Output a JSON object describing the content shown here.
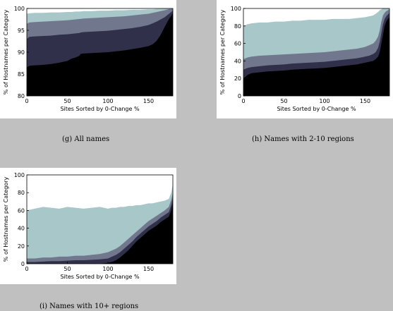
{
  "charts": [
    {
      "caption": "(g) All names"
    },
    {
      "caption": "(h) Names with 2-10 regions"
    },
    {
      "caption": "(i) Names with 10+ regions"
    }
  ],
  "colors": {
    "band1": "#000000",
    "band2": "#30304a",
    "band3": "#71788e",
    "band4": "#a7c7c8"
  },
  "chart_data": [
    {
      "type": "area",
      "title": "",
      "xlabel": "Sites Sorted by 0-Change %",
      "ylabel": "% of Hostnames per Category",
      "xlim": [
        0,
        180
      ],
      "ylim": [
        80,
        100
      ],
      "xticks": [
        0,
        50,
        100,
        150
      ],
      "yticks": [
        80,
        85,
        90,
        95,
        100
      ],
      "grid": false,
      "stacked": true,
      "x": [
        0,
        3,
        10,
        20,
        30,
        40,
        50,
        55,
        60,
        65,
        66,
        70,
        80,
        90,
        100,
        110,
        120,
        130,
        140,
        150,
        155,
        160,
        165,
        170,
        172,
        174,
        176,
        178,
        180
      ],
      "series": [
        {
          "values": [
            86.5,
            86.9,
            87.0,
            87.1,
            87.3,
            87.6,
            88.0,
            88.5,
            88.8,
            89.2,
            89.6,
            89.7,
            89.8,
            89.9,
            90.0,
            90.2,
            90.4,
            90.7,
            91.0,
            91.4,
            91.8,
            92.6,
            94.0,
            95.8,
            96.5,
            97.2,
            97.8,
            98.3,
            99.0
          ]
        },
        {
          "values": [
            93.0,
            93.5,
            93.6,
            93.7,
            93.8,
            94.0,
            94.1,
            94.2,
            94.3,
            94.4,
            94.5,
            94.6,
            94.7,
            94.8,
            94.9,
            95.1,
            95.3,
            95.5,
            95.8,
            96.2,
            96.6,
            97.0,
            97.5,
            98.0,
            98.3,
            98.6,
            98.9,
            99.2,
            99.5
          ]
        },
        {
          "values": [
            96.5,
            96.8,
            96.9,
            97.0,
            97.1,
            97.2,
            97.3,
            97.4,
            97.5,
            97.6,
            97.6,
            97.7,
            97.8,
            97.9,
            98.0,
            98.1,
            98.2,
            98.4,
            98.6,
            98.8,
            99.0,
            99.2,
            99.4,
            99.6,
            99.7,
            99.8,
            99.9,
            99.9,
            100
          ]
        },
        {
          "values": [
            98.8,
            98.9,
            99.0,
            99.0,
            99.1,
            99.1,
            99.2,
            99.2,
            99.3,
            99.3,
            99.3,
            99.4,
            99.4,
            99.5,
            99.5,
            99.6,
            99.6,
            99.7,
            99.7,
            99.8,
            99.8,
            99.9,
            99.9,
            100,
            100,
            100,
            100,
            100,
            100
          ]
        }
      ]
    },
    {
      "type": "area",
      "title": "",
      "xlabel": "Sites Sorted by 0-Change %",
      "ylabel": "% of Hostnames per Category",
      "xlim": [
        0,
        180
      ],
      "ylim": [
        0,
        100
      ],
      "xticks": [
        0,
        50,
        100,
        150
      ],
      "yticks": [
        0,
        20,
        40,
        60,
        80,
        100
      ],
      "grid": false,
      "stacked": true,
      "x": [
        0,
        5,
        10,
        20,
        30,
        40,
        50,
        60,
        70,
        80,
        90,
        100,
        110,
        120,
        130,
        140,
        150,
        155,
        160,
        163,
        166,
        168,
        170,
        172,
        174,
        176,
        178,
        180
      ],
      "series": [
        {
          "values": [
            20,
            24,
            26,
            27,
            28,
            28.5,
            29,
            30,
            30.5,
            31,
            31.5,
            32,
            33,
            34,
            35,
            36,
            38,
            39,
            40,
            42,
            45,
            50,
            60,
            70,
            80,
            85,
            88,
            90
          ]
        },
        {
          "values": [
            30,
            32,
            33,
            34,
            35,
            35.5,
            36,
            37,
            37.5,
            38,
            38.5,
            39,
            40,
            41,
            42,
            43,
            45,
            46,
            48,
            50,
            55,
            62,
            72,
            82,
            88,
            91,
            93,
            95
          ]
        },
        {
          "values": [
            42,
            44,
            45,
            46,
            46.5,
            47,
            47.5,
            48,
            48.5,
            49,
            49.5,
            50,
            51,
            52,
            53,
            54,
            56,
            58,
            60,
            63,
            68,
            75,
            85,
            92,
            95,
            97,
            98,
            99
          ]
        },
        {
          "values": [
            80,
            82,
            83,
            84,
            84,
            85,
            85,
            86,
            86,
            87,
            87,
            87,
            88,
            88,
            88,
            89,
            90,
            91,
            92,
            94,
            96,
            98,
            99,
            100,
            100,
            100,
            100,
            100
          ]
        }
      ]
    },
    {
      "type": "area",
      "title": "",
      "xlabel": "Sites Sorted by 0-Change %",
      "ylabel": "% of Hostnames per Category",
      "xlim": [
        0,
        180
      ],
      "ylim": [
        0,
        100
      ],
      "xticks": [
        0,
        50,
        100,
        150
      ],
      "yticks": [
        0,
        20,
        40,
        60,
        80,
        100
      ],
      "grid": false,
      "stacked": true,
      "x": [
        0,
        10,
        20,
        30,
        40,
        50,
        60,
        70,
        80,
        90,
        95,
        100,
        105,
        110,
        115,
        120,
        125,
        130,
        135,
        140,
        145,
        150,
        155,
        160,
        165,
        170,
        175,
        178,
        180
      ],
      "series": [
        {
          "values": [
            0,
            0,
            0,
            0,
            0,
            0,
            0,
            0,
            0,
            0,
            0.5,
            1,
            2,
            4,
            7,
            11,
            15,
            20,
            25,
            29,
            33,
            37,
            40,
            43,
            47,
            50,
            53,
            60,
            70
          ]
        },
        {
          "values": [
            2,
            2,
            2.5,
            3,
            3,
            3.5,
            4,
            4,
            4.5,
            5,
            5.5,
            6,
            8,
            10,
            13,
            17,
            21,
            25,
            30,
            34,
            38,
            42,
            45,
            48,
            52,
            55,
            58,
            66,
            75
          ]
        },
        {
          "values": [
            6,
            6,
            7,
            7,
            8,
            8,
            9,
            9,
            10,
            11,
            12,
            13,
            15,
            17,
            20,
            24,
            28,
            32,
            36,
            40,
            44,
            48,
            51,
            54,
            57,
            60,
            64,
            72,
            80
          ]
        },
        {
          "values": [
            60,
            62,
            64,
            63,
            62,
            64,
            63,
            62,
            63,
            64,
            63,
            62,
            63,
            63,
            64,
            64,
            65,
            65,
            66,
            66,
            67,
            68,
            68,
            69,
            70,
            71,
            73,
            80,
            90
          ]
        }
      ]
    }
  ]
}
